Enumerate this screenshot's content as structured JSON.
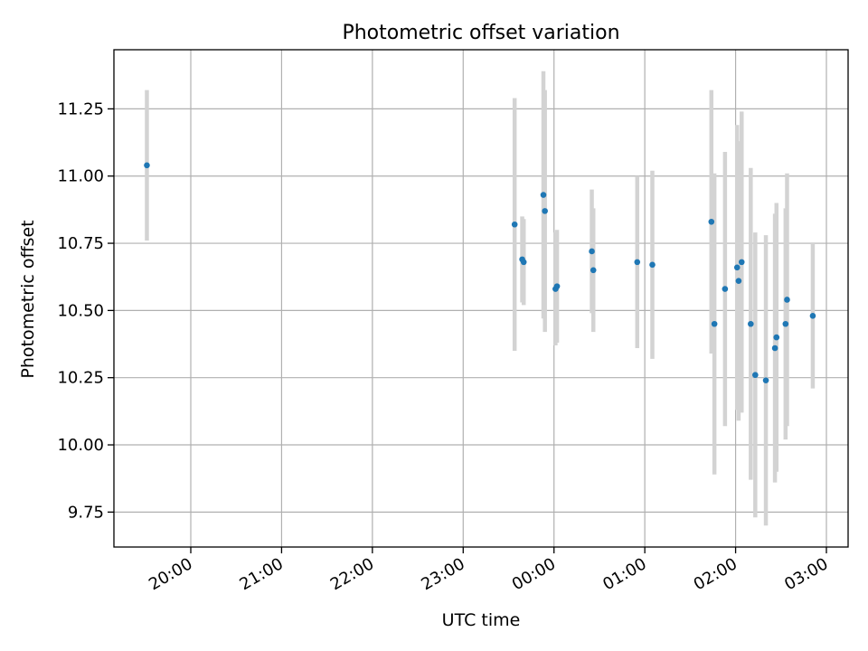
{
  "chart_data": {
    "type": "scatter",
    "title": "Photometric offset variation",
    "xlabel": "UTC time",
    "ylabel": "Photometric offset",
    "x_axis_type": "time",
    "x_ticks": [
      "20:00",
      "21:00",
      "22:00",
      "23:00",
      "00:00",
      "01:00",
      "02:00",
      "03:00"
    ],
    "y_ticks": [
      "9.75",
      "10.00",
      "10.25",
      "10.50",
      "10.75",
      "11.00",
      "11.25"
    ],
    "y_tick_values": [
      9.75,
      10.0,
      10.25,
      10.5,
      10.75,
      11.0,
      11.25
    ],
    "ylim": [
      9.62,
      11.47
    ],
    "grid": true,
    "point_color": "#1f77b4",
    "errorbar_color": "#d3d3d3",
    "points": [
      {
        "x": "19:31",
        "y": 11.04,
        "err": 0.28
      },
      {
        "x": "23:34",
        "y": 10.82,
        "err": 0.47
      },
      {
        "x": "23:39",
        "y": 10.69,
        "err": 0.16
      },
      {
        "x": "23:40",
        "y": 10.68,
        "err": 0.16
      },
      {
        "x": "23:53",
        "y": 10.93,
        "err": 0.46
      },
      {
        "x": "23:54",
        "y": 10.87,
        "err": 0.45
      },
      {
        "x": "00:01",
        "y": 10.58,
        "err": 0.21
      },
      {
        "x": "00:02",
        "y": 10.59,
        "err": 0.21
      },
      {
        "x": "00:25",
        "y": 10.72,
        "err": 0.23
      },
      {
        "x": "00:26",
        "y": 10.65,
        "err": 0.23
      },
      {
        "x": "00:55",
        "y": 10.68,
        "err": 0.32
      },
      {
        "x": "01:05",
        "y": 10.67,
        "err": 0.35
      },
      {
        "x": "01:44",
        "y": 10.83,
        "err": 0.49
      },
      {
        "x": "01:46",
        "y": 10.45,
        "err": 0.56
      },
      {
        "x": "01:53",
        "y": 10.58,
        "err": 0.51
      },
      {
        "x": "02:01",
        "y": 10.66,
        "err": 0.53
      },
      {
        "x": "02:02",
        "y": 10.61,
        "err": 0.52
      },
      {
        "x": "02:04",
        "y": 10.68,
        "err": 0.56
      },
      {
        "x": "02:10",
        "y": 10.45,
        "err": 0.58
      },
      {
        "x": "02:13",
        "y": 10.26,
        "err": 0.53
      },
      {
        "x": "02:20",
        "y": 10.24,
        "err": 0.54
      },
      {
        "x": "02:26",
        "y": 10.36,
        "err": 0.5
      },
      {
        "x": "02:27",
        "y": 10.4,
        "err": 0.5
      },
      {
        "x": "02:33",
        "y": 10.45,
        "err": 0.43
      },
      {
        "x": "02:34",
        "y": 10.54,
        "err": 0.47
      },
      {
        "x": "02:51",
        "y": 10.48,
        "err": 0.27
      }
    ]
  }
}
